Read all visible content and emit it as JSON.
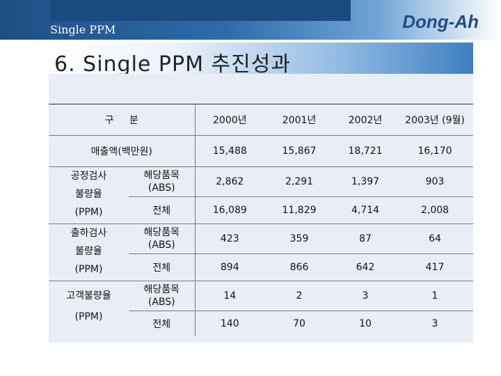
{
  "header": {
    "section_label": "Single PPM",
    "brand": "Dong-Ah"
  },
  "title": "6. Single PPM 추진성과",
  "table": {
    "header": {
      "category": "구     분",
      "years": [
        "2000년",
        "2001년",
        "2002년",
        "2003년 (9월)"
      ]
    },
    "sales": {
      "label": "매출액(백만원)",
      "values": [
        "15,488",
        "15,867",
        "18,721",
        "16,170"
      ]
    },
    "groups": [
      {
        "label_line1": "공정검사",
        "label_line2": "불량율",
        "label_line3": "(PPM)",
        "rows": [
          {
            "sub": "해당품목",
            "sub2": "(ABS)",
            "values": [
              "2,862",
              "2,291",
              "1,397",
              "903"
            ]
          },
          {
            "sub": "전체",
            "sub2": "",
            "values": [
              "16,089",
              "11,829",
              "4,714",
              "2,008"
            ]
          }
        ]
      },
      {
        "label_line1": "출하검사",
        "label_line2": "불량율",
        "label_line3": "(PPM)",
        "rows": [
          {
            "sub": "해당품목",
            "sub2": "(ABS)",
            "values": [
              "423",
              "359",
              "87",
              "64"
            ]
          },
          {
            "sub": "전체",
            "sub2": "",
            "values": [
              "894",
              "866",
              "642",
              "417"
            ]
          }
        ]
      },
      {
        "label_line1": "고객불량율",
        "label_line2": "(PPM)",
        "label_line3": "",
        "rows": [
          {
            "sub": "해당품목",
            "sub2": "(ABS)",
            "values": [
              "14",
              "2",
              "3",
              "1"
            ]
          },
          {
            "sub": "전체",
            "sub2": "",
            "values": [
              "140",
              "70",
              "10",
              "3"
            ]
          }
        ]
      }
    ]
  }
}
